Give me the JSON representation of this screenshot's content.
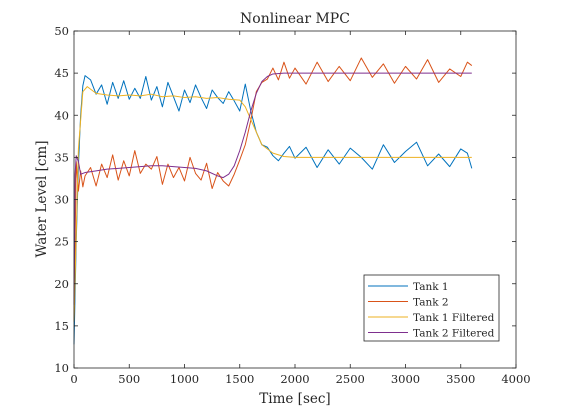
{
  "chart_data": {
    "type": "line",
    "title": "Nonlinear MPC",
    "xlabel": "Time [sec]",
    "ylabel": "Water Level [cm]",
    "xlim": [
      0,
      4000
    ],
    "ylim": [
      10,
      50
    ],
    "xticks": [
      0,
      500,
      1000,
      1500,
      2000,
      2500,
      3000,
      3500,
      4000
    ],
    "yticks": [
      10,
      15,
      20,
      25,
      30,
      35,
      40,
      45,
      50
    ],
    "grid": false,
    "legend_position": "bottom-right",
    "series": [
      {
        "name": "Tank 1",
        "color": "#0072BD",
        "x": [
          0,
          20,
          40,
          60,
          80,
          100,
          150,
          200,
          250,
          300,
          350,
          400,
          450,
          500,
          550,
          600,
          650,
          700,
          750,
          800,
          850,
          900,
          950,
          1000,
          1050,
          1100,
          1150,
          1200,
          1250,
          1300,
          1350,
          1400,
          1450,
          1500,
          1550,
          1600,
          1650,
          1700,
          1750,
          1800,
          1850,
          1900,
          1950,
          2000,
          2100,
          2200,
          2300,
          2400,
          2500,
          2600,
          2700,
          2800,
          2900,
          3000,
          3100,
          3200,
          3300,
          3400,
          3500,
          3560,
          3600
        ],
        "y": [
          12.8,
          25,
          34,
          40,
          43.5,
          44.7,
          44.2,
          42.5,
          43.6,
          41.3,
          43.9,
          42.0,
          44.1,
          41.9,
          43.2,
          42.0,
          44.6,
          41.8,
          43.4,
          41.0,
          43.9,
          42.2,
          40.5,
          43.0,
          41.5,
          43.6,
          42.1,
          40.8,
          43.0,
          42.1,
          41.4,
          42.8,
          41.7,
          40.5,
          43.7,
          40.5,
          38.0,
          36.5,
          36.2,
          35.2,
          34.6,
          35.5,
          36.3,
          34.9,
          36.2,
          33.8,
          35.9,
          34.2,
          36.1,
          35.0,
          33.6,
          36.5,
          34.4,
          35.7,
          36.8,
          34.0,
          35.4,
          33.9,
          36.0,
          35.5,
          33.7
        ]
      },
      {
        "name": "Tank 2",
        "color": "#D95319",
        "x": [
          0,
          20,
          40,
          60,
          80,
          100,
          150,
          200,
          250,
          300,
          350,
          400,
          450,
          500,
          550,
          600,
          650,
          700,
          750,
          800,
          850,
          900,
          950,
          1000,
          1050,
          1100,
          1150,
          1200,
          1250,
          1300,
          1350,
          1400,
          1450,
          1500,
          1550,
          1600,
          1650,
          1700,
          1750,
          1800,
          1850,
          1900,
          1950,
          2000,
          2100,
          2200,
          2300,
          2400,
          2500,
          2600,
          2700,
          2800,
          2900,
          3000,
          3100,
          3200,
          3300,
          3400,
          3500,
          3560,
          3600
        ],
        "y": [
          15.5,
          34.5,
          31.0,
          33.4,
          31.5,
          32.8,
          33.8,
          31.6,
          34.2,
          32.6,
          35.3,
          32.3,
          34.6,
          32.8,
          35.8,
          33.1,
          34.2,
          33.6,
          35.1,
          31.8,
          34.2,
          32.6,
          33.8,
          32.2,
          35.0,
          33.1,
          32.3,
          34.3,
          31.3,
          33.2,
          32.2,
          31.6,
          33.0,
          34.7,
          36.5,
          39.4,
          42.8,
          43.9,
          44.3,
          45.6,
          44.2,
          46.3,
          44.4,
          45.6,
          43.7,
          46.3,
          44.0,
          45.8,
          44.1,
          46.8,
          44.5,
          46.1,
          43.8,
          45.8,
          44.3,
          46.6,
          43.9,
          45.5,
          44.6,
          46.3,
          45.9
        ]
      },
      {
        "name": "Tank 1 Filtered",
        "color": "#EDB120",
        "x": [
          0,
          40,
          80,
          120,
          200,
          300,
          400,
          500,
          600,
          700,
          800,
          900,
          1000,
          1100,
          1200,
          1300,
          1400,
          1500,
          1550,
          1600,
          1650,
          1700,
          1800,
          1900,
          2000,
          2200,
          2400,
          2600,
          2800,
          3000,
          3200,
          3400,
          3600
        ],
        "y": [
          15.5,
          36.0,
          42.8,
          43.4,
          42.6,
          42.4,
          42.3,
          42.4,
          42.3,
          42.5,
          42.2,
          42.3,
          42.1,
          42.2,
          42.0,
          42.1,
          41.9,
          41.8,
          41.0,
          39.5,
          38.0,
          36.5,
          35.5,
          35.1,
          35.0,
          35.0,
          35.0,
          35.0,
          35.0,
          35.0,
          35.0,
          35.0,
          35.0
        ]
      },
      {
        "name": "Tank 2 Filtered",
        "color": "#7E2F8E",
        "x": [
          0,
          10,
          20,
          40,
          60,
          100,
          200,
          300,
          400,
          500,
          600,
          700,
          800,
          900,
          1000,
          1100,
          1200,
          1300,
          1350,
          1400,
          1450,
          1500,
          1550,
          1600,
          1650,
          1700,
          1750,
          1800,
          1900,
          2000,
          2200,
          2400,
          2600,
          2800,
          3000,
          3200,
          3400,
          3600
        ],
        "y": [
          17.5,
          33.0,
          35.2,
          34.5,
          33.0,
          33.2,
          33.4,
          33.6,
          33.7,
          33.8,
          33.9,
          34.0,
          34.0,
          33.9,
          33.8,
          33.7,
          33.4,
          32.8,
          32.6,
          33.0,
          34.0,
          35.8,
          38.0,
          40.5,
          42.6,
          44.0,
          44.6,
          44.9,
          45.0,
          45.0,
          45.0,
          45.0,
          45.0,
          45.0,
          45.0,
          45.0,
          45.0,
          45.0
        ]
      }
    ]
  }
}
